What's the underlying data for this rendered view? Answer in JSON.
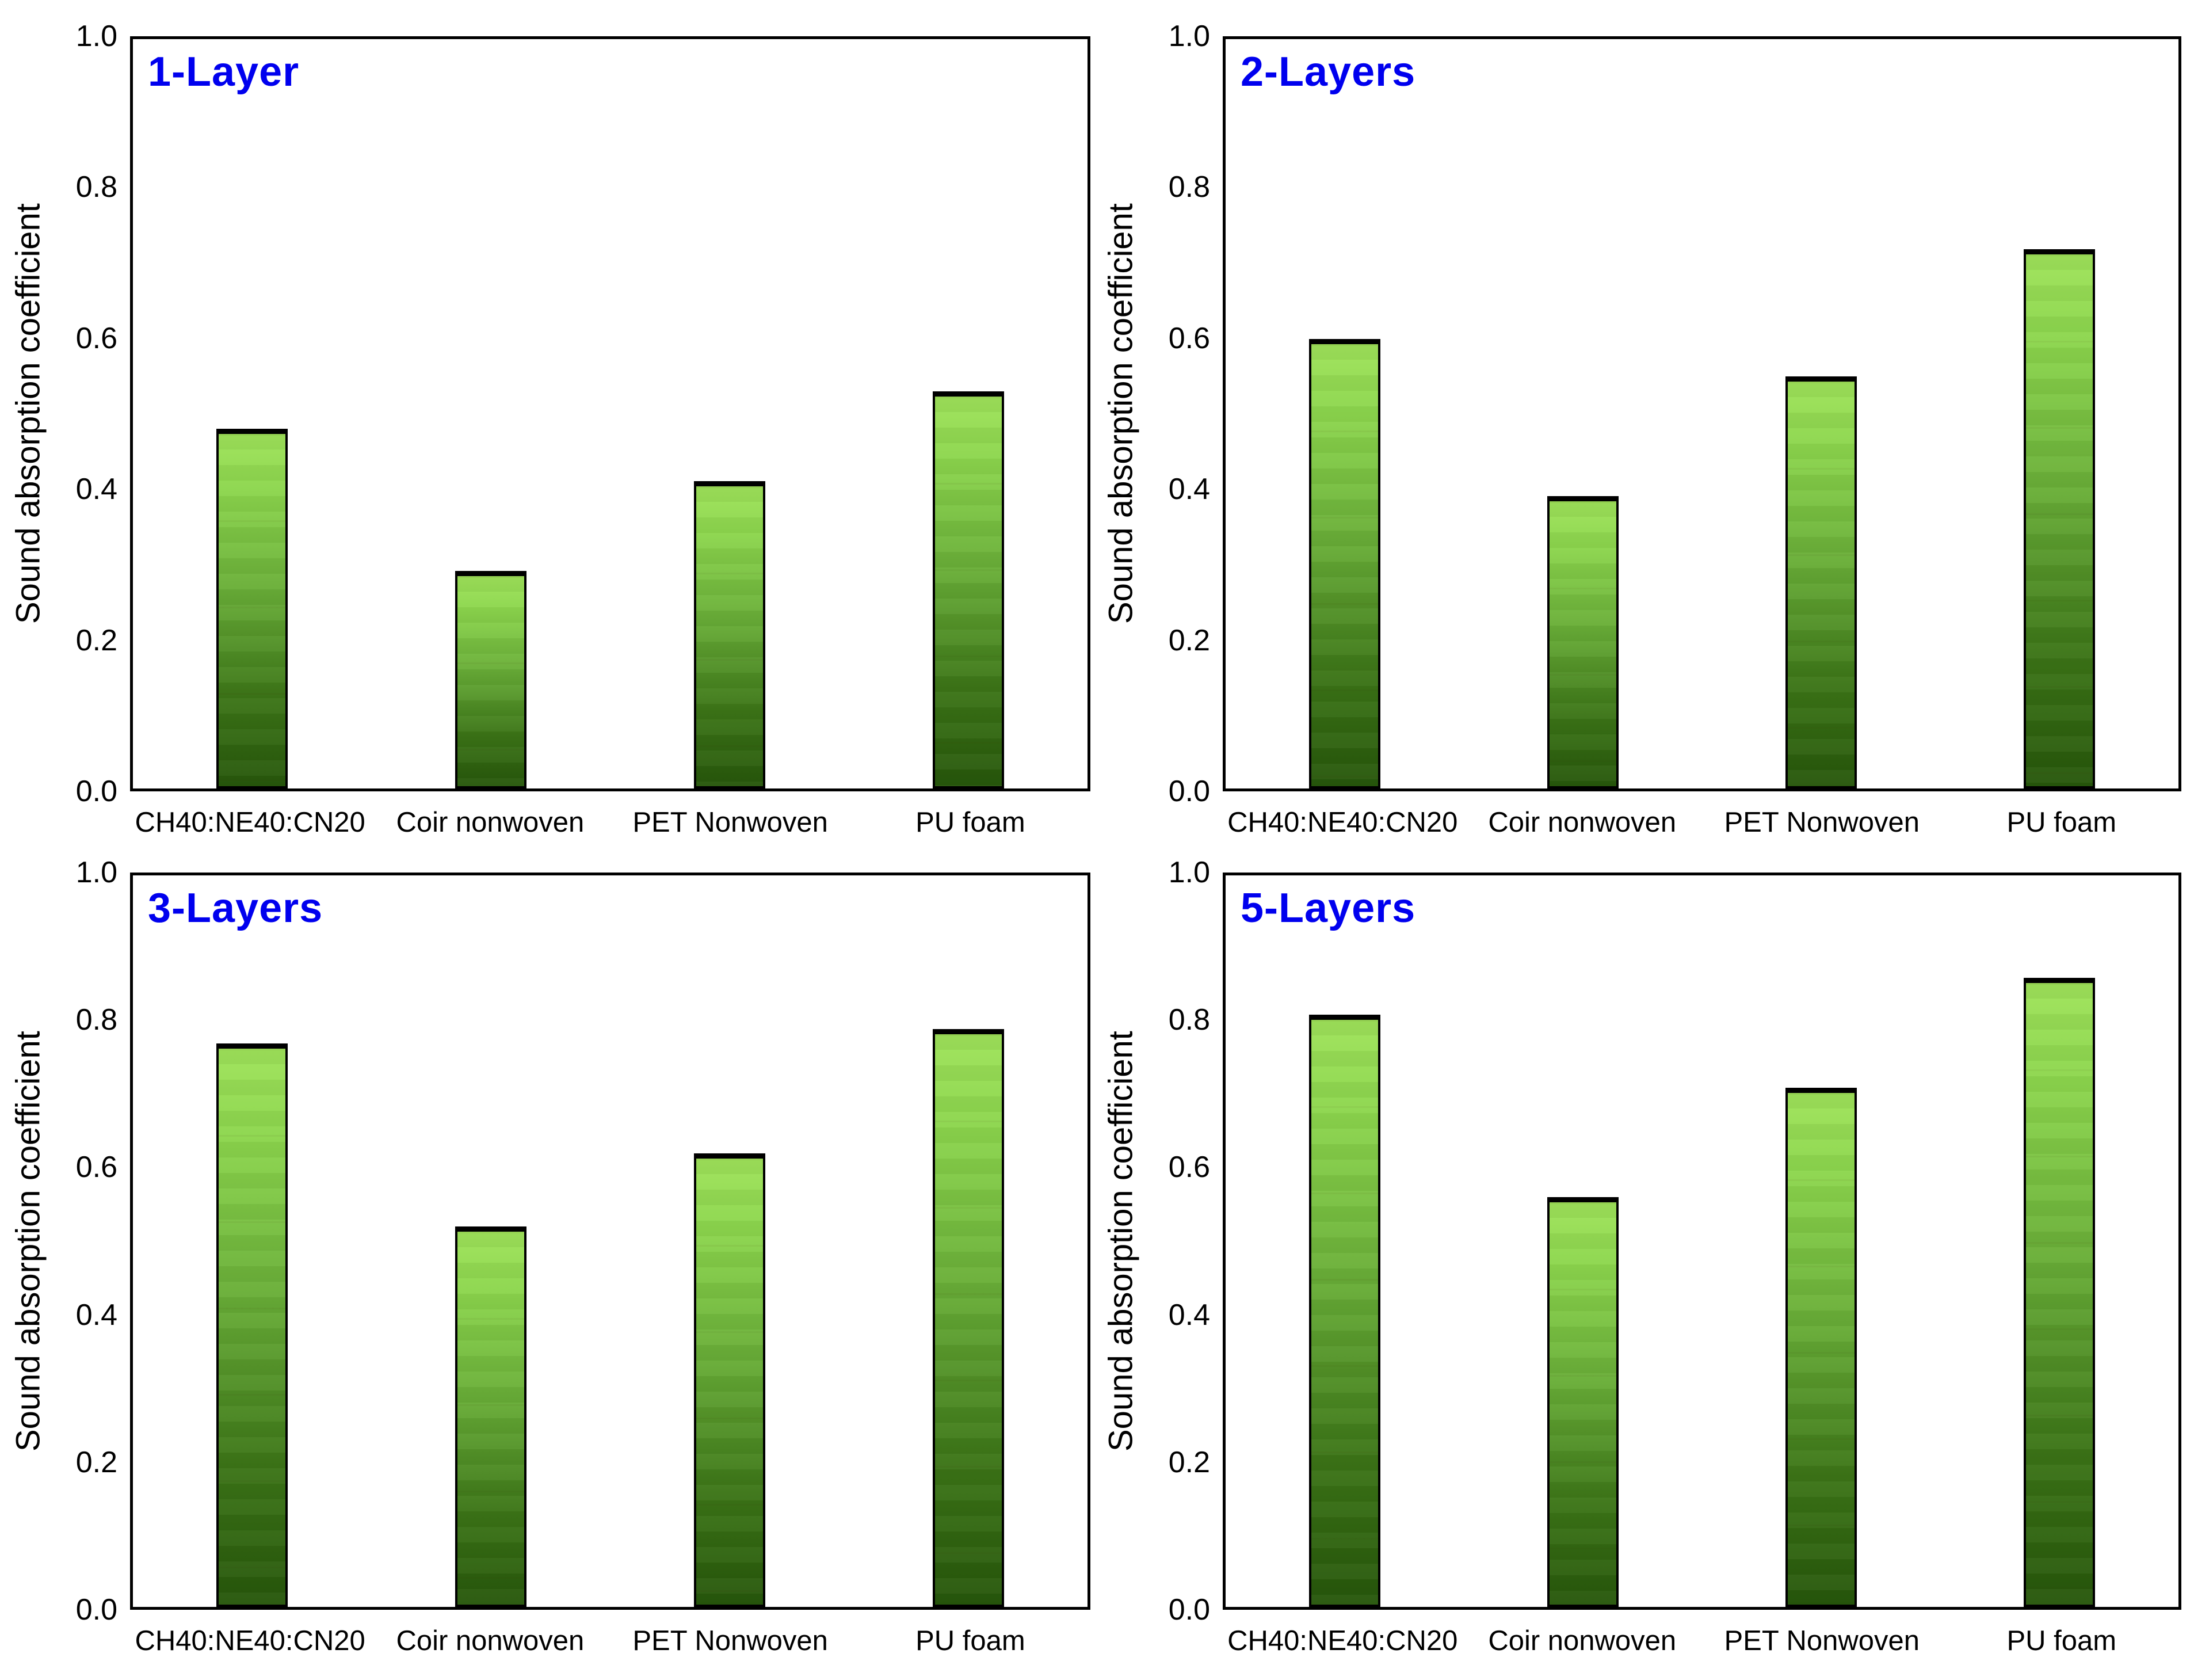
{
  "figure": {
    "ylabel": "Sound absorption coefficient",
    "categories": [
      "CH40:NE40:CN20",
      "Coir nonwoven",
      "PET Nonwoven",
      "PU foam"
    ],
    "ytick_labels": [
      "0.0",
      "0.2",
      "0.4",
      "0.6",
      "0.8",
      "1.0"
    ],
    "panel_titles": [
      "1-Layer",
      "2-Layers",
      "3-Layers",
      "5-Layers"
    ],
    "colors": {
      "panel_title": "#0000ee",
      "axis_line": "#000000",
      "bar_outline": "#000000",
      "bar_gradient_top": "#9fe35a",
      "bar_gradient_high": "#8cd64d",
      "bar_gradient_mid": "#68ad37",
      "bar_gradient_low": "#3c7517",
      "bar_gradient_bottom": "#27570b",
      "background": "#ffffff"
    }
  },
  "chart_data": [
    {
      "type": "bar",
      "title": "1-Layer",
      "categories": [
        "CH40:NE40:CN20",
        "Coir nonwoven",
        "PET Nonwoven",
        "PU foam"
      ],
      "values": [
        0.48,
        0.29,
        0.41,
        0.53
      ],
      "xlabel": "",
      "ylabel": "Sound absorption coefficient",
      "ylim": [
        0.0,
        1.0
      ],
      "yticks": [
        0.0,
        0.2,
        0.4,
        0.6,
        0.8,
        1.0
      ],
      "grid": false,
      "legend": "none"
    },
    {
      "type": "bar",
      "title": "2-Layers",
      "categories": [
        "CH40:NE40:CN20",
        "Coir nonwoven",
        "PET Nonwoven",
        "PU foam"
      ],
      "values": [
        0.6,
        0.39,
        0.55,
        0.72
      ],
      "xlabel": "",
      "ylabel": "Sound absorption coefficient",
      "ylim": [
        0.0,
        1.0
      ],
      "yticks": [
        0.0,
        0.2,
        0.4,
        0.6,
        0.8,
        1.0
      ],
      "grid": false,
      "legend": "none"
    },
    {
      "type": "bar",
      "title": "3-Layers",
      "categories": [
        "CH40:NE40:CN20",
        "Coir nonwoven",
        "PET Nonwoven",
        "PU foam"
      ],
      "values": [
        0.77,
        0.52,
        0.62,
        0.79
      ],
      "xlabel": "",
      "ylabel": "Sound absorption coefficient",
      "ylim": [
        0.0,
        1.0
      ],
      "yticks": [
        0.0,
        0.2,
        0.4,
        0.6,
        0.8,
        1.0
      ],
      "grid": false,
      "legend": "none"
    },
    {
      "type": "bar",
      "title": "5-Layers",
      "categories": [
        "CH40:NE40:CN20",
        "Coir nonwoven",
        "PET Nonwoven",
        "PU foam"
      ],
      "values": [
        0.81,
        0.56,
        0.71,
        0.86
      ],
      "xlabel": "",
      "ylabel": "Sound absorption coefficient",
      "ylim": [
        0.0,
        1.0
      ],
      "yticks": [
        0.0,
        0.2,
        0.4,
        0.6,
        0.8,
        1.0
      ],
      "grid": false,
      "legend": "none"
    }
  ]
}
